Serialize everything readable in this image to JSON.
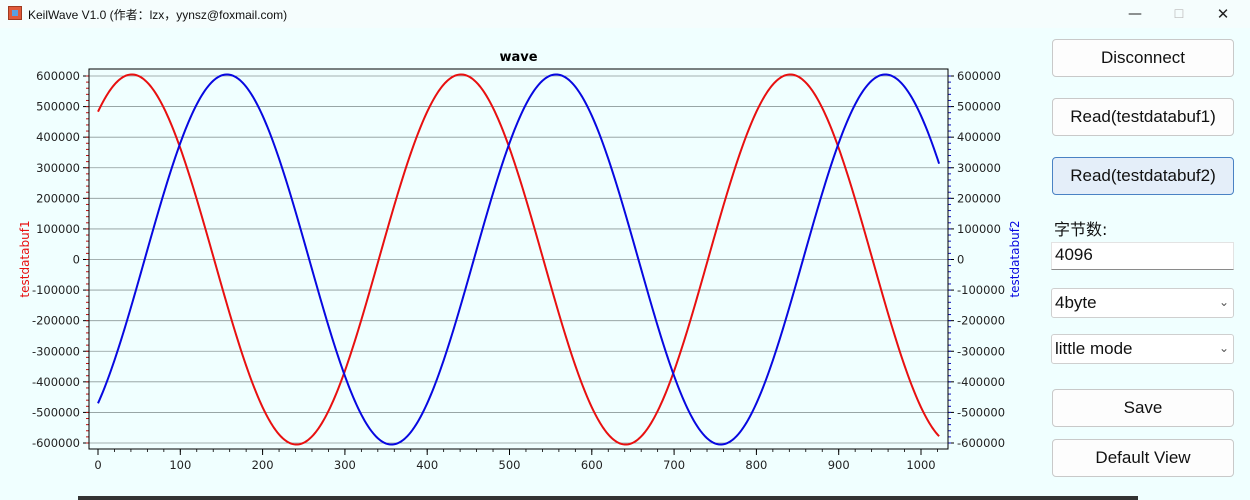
{
  "window": {
    "title": "KeilWave V1.0 (作者：lzx，yynsz@foxmail.com)"
  },
  "controls": {
    "minimize": "—",
    "maximize": "☐",
    "close": "✕"
  },
  "sidebar": {
    "disconnect": "Disconnect",
    "read1": "Read(testdatabuf1)",
    "read2": "Read(testdatabuf2)",
    "bytes_label": "字节数:",
    "bytes_value": "4096",
    "type_select": "4byte",
    "endian_select": "little mode",
    "save": "Save",
    "default_view": "Default View"
  },
  "chart_data": {
    "type": "line",
    "title": "wave",
    "ylabel_left": "testdatabuf1",
    "ylabel_right": "testdatabuf2",
    "xlim": [
      0,
      1023
    ],
    "ylim": [
      -620000,
      620000
    ],
    "x_ticks": [
      "0",
      "100",
      "200",
      "300",
      "400",
      "500",
      "600",
      "700",
      "800",
      "900",
      "1000"
    ],
    "y_ticks": [
      "600000",
      "500000",
      "400000",
      "300000",
      "200000",
      "100000",
      "0",
      "-100000",
      "-200000",
      "-300000",
      "-400000",
      "-500000",
      "-600000"
    ],
    "grid": true,
    "series": [
      {
        "name": "testdatabuf1",
        "color": "#e81010",
        "amplitude": 605000,
        "period": 400,
        "phase_deg": 53,
        "x_range": [
          0,
          1023
        ]
      },
      {
        "name": "testdatabuf2",
        "color": "#0808e0",
        "amplitude": 605000,
        "period": 400,
        "phase_deg": -51,
        "x_range": [
          0,
          1023
        ]
      }
    ]
  }
}
